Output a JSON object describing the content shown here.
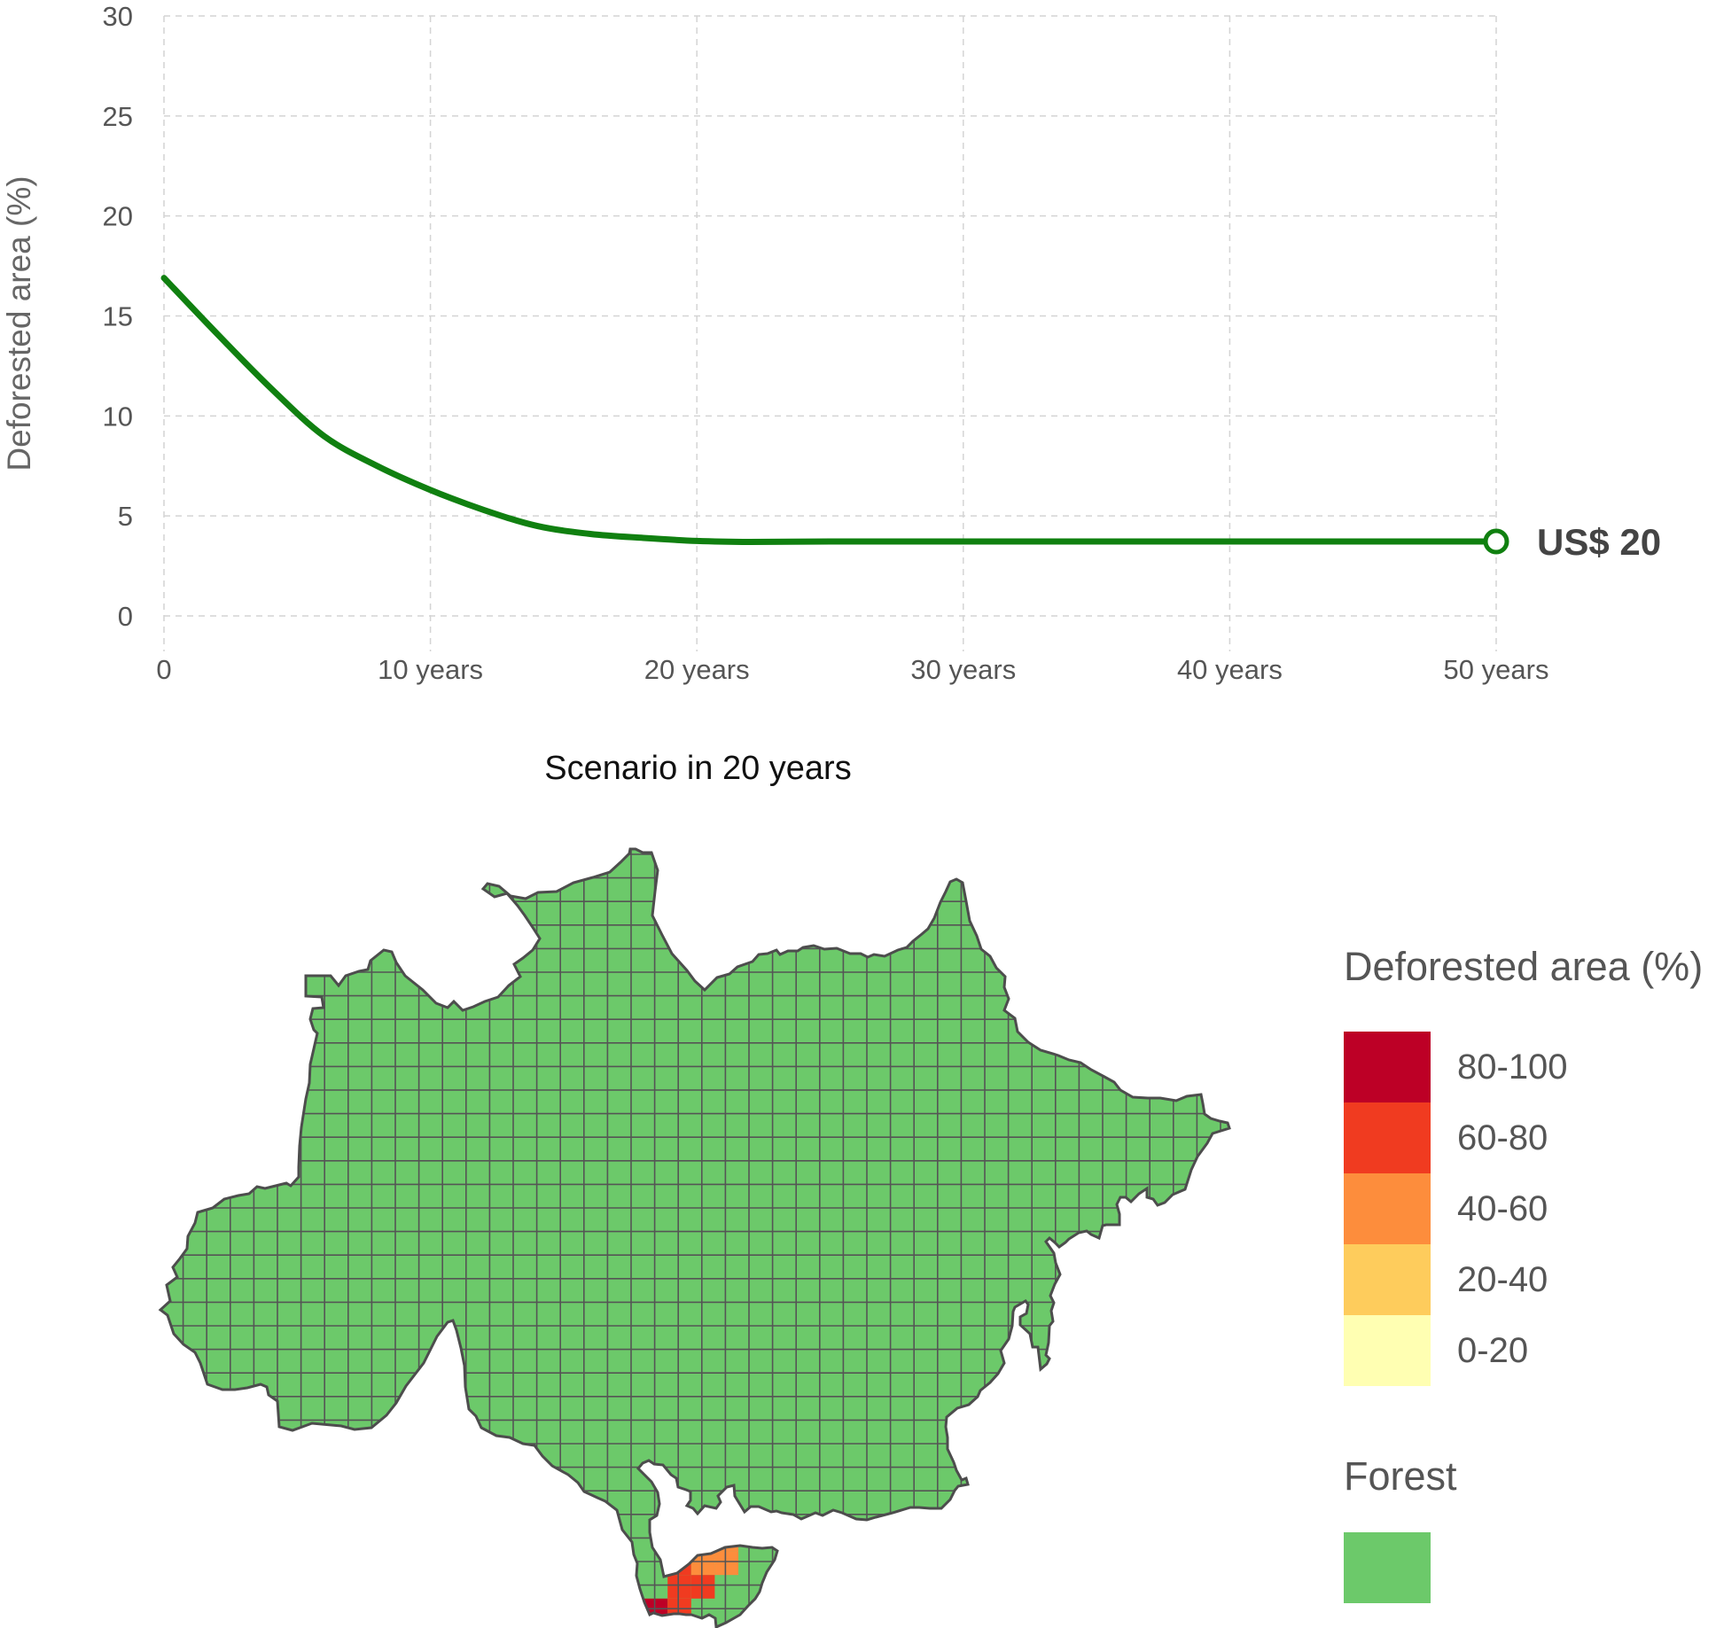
{
  "chart_data": [
    {
      "type": "line",
      "ylabel": "Deforested area (%)",
      "xlabel": "",
      "x_tick_labels": [
        "0",
        "10 years",
        "20 years",
        "30 years",
        "40 years",
        "50 years"
      ],
      "x_ticks": [
        0,
        10,
        20,
        30,
        40,
        50
      ],
      "y_ticks": [
        0,
        5,
        10,
        15,
        20,
        25,
        30
      ],
      "xlim": [
        0,
        50
      ],
      "ylim": [
        0,
        30
      ],
      "grid": true,
      "series": [
        {
          "color": "#108010",
          "x": [
            0,
            2,
            4,
            6,
            8,
            10,
            12,
            14,
            16,
            18,
            20,
            22,
            25,
            30,
            35,
            40,
            45,
            50
          ],
          "y": [
            16.9,
            14.1,
            11.4,
            9.0,
            7.5,
            6.3,
            5.3,
            4.5,
            4.1,
            3.9,
            3.75,
            3.7,
            3.72,
            3.72,
            3.72,
            3.72,
            3.72,
            3.72
          ]
        }
      ],
      "end_marker": {
        "x": 50,
        "y": 3.72,
        "label": "US$ 20"
      }
    },
    {
      "type": "heatmap",
      "title": "Scenario in 20 years",
      "legend": {
        "title": "Deforested area (%)",
        "items": [
          {
            "label": "80-100",
            "color": "#bd0026"
          },
          {
            "label": "60-80",
            "color": "#f03b20"
          },
          {
            "label": "40-60",
            "color": "#fd8d3c"
          },
          {
            "label": "20-40",
            "color": "#fecc5c"
          },
          {
            "label": "0-20",
            "color": "#ffffb2"
          }
        ],
        "forest_title": "Forest",
        "forest_color": "#6cc96a"
      },
      "highlighted_cells": [
        {
          "col": 13,
          "row": 26,
          "category": "40-60"
        },
        {
          "col": 14,
          "row": 26,
          "category": "40-60"
        },
        {
          "col": 12,
          "row": 27,
          "category": "60-80"
        },
        {
          "col": 13,
          "row": 27,
          "category": "40-60"
        },
        {
          "col": 14,
          "row": 27,
          "category": "40-60"
        },
        {
          "col": 12,
          "row": 28,
          "category": "60-80"
        },
        {
          "col": 13,
          "row": 28,
          "category": "60-80"
        },
        {
          "col": 11,
          "row": 29,
          "category": "80-100"
        },
        {
          "col": 12,
          "row": 29,
          "category": "60-80"
        },
        {
          "col": 10,
          "row": 29,
          "category": "60-80"
        },
        {
          "col": 9,
          "row": 30,
          "category": "60-80"
        }
      ]
    }
  ]
}
